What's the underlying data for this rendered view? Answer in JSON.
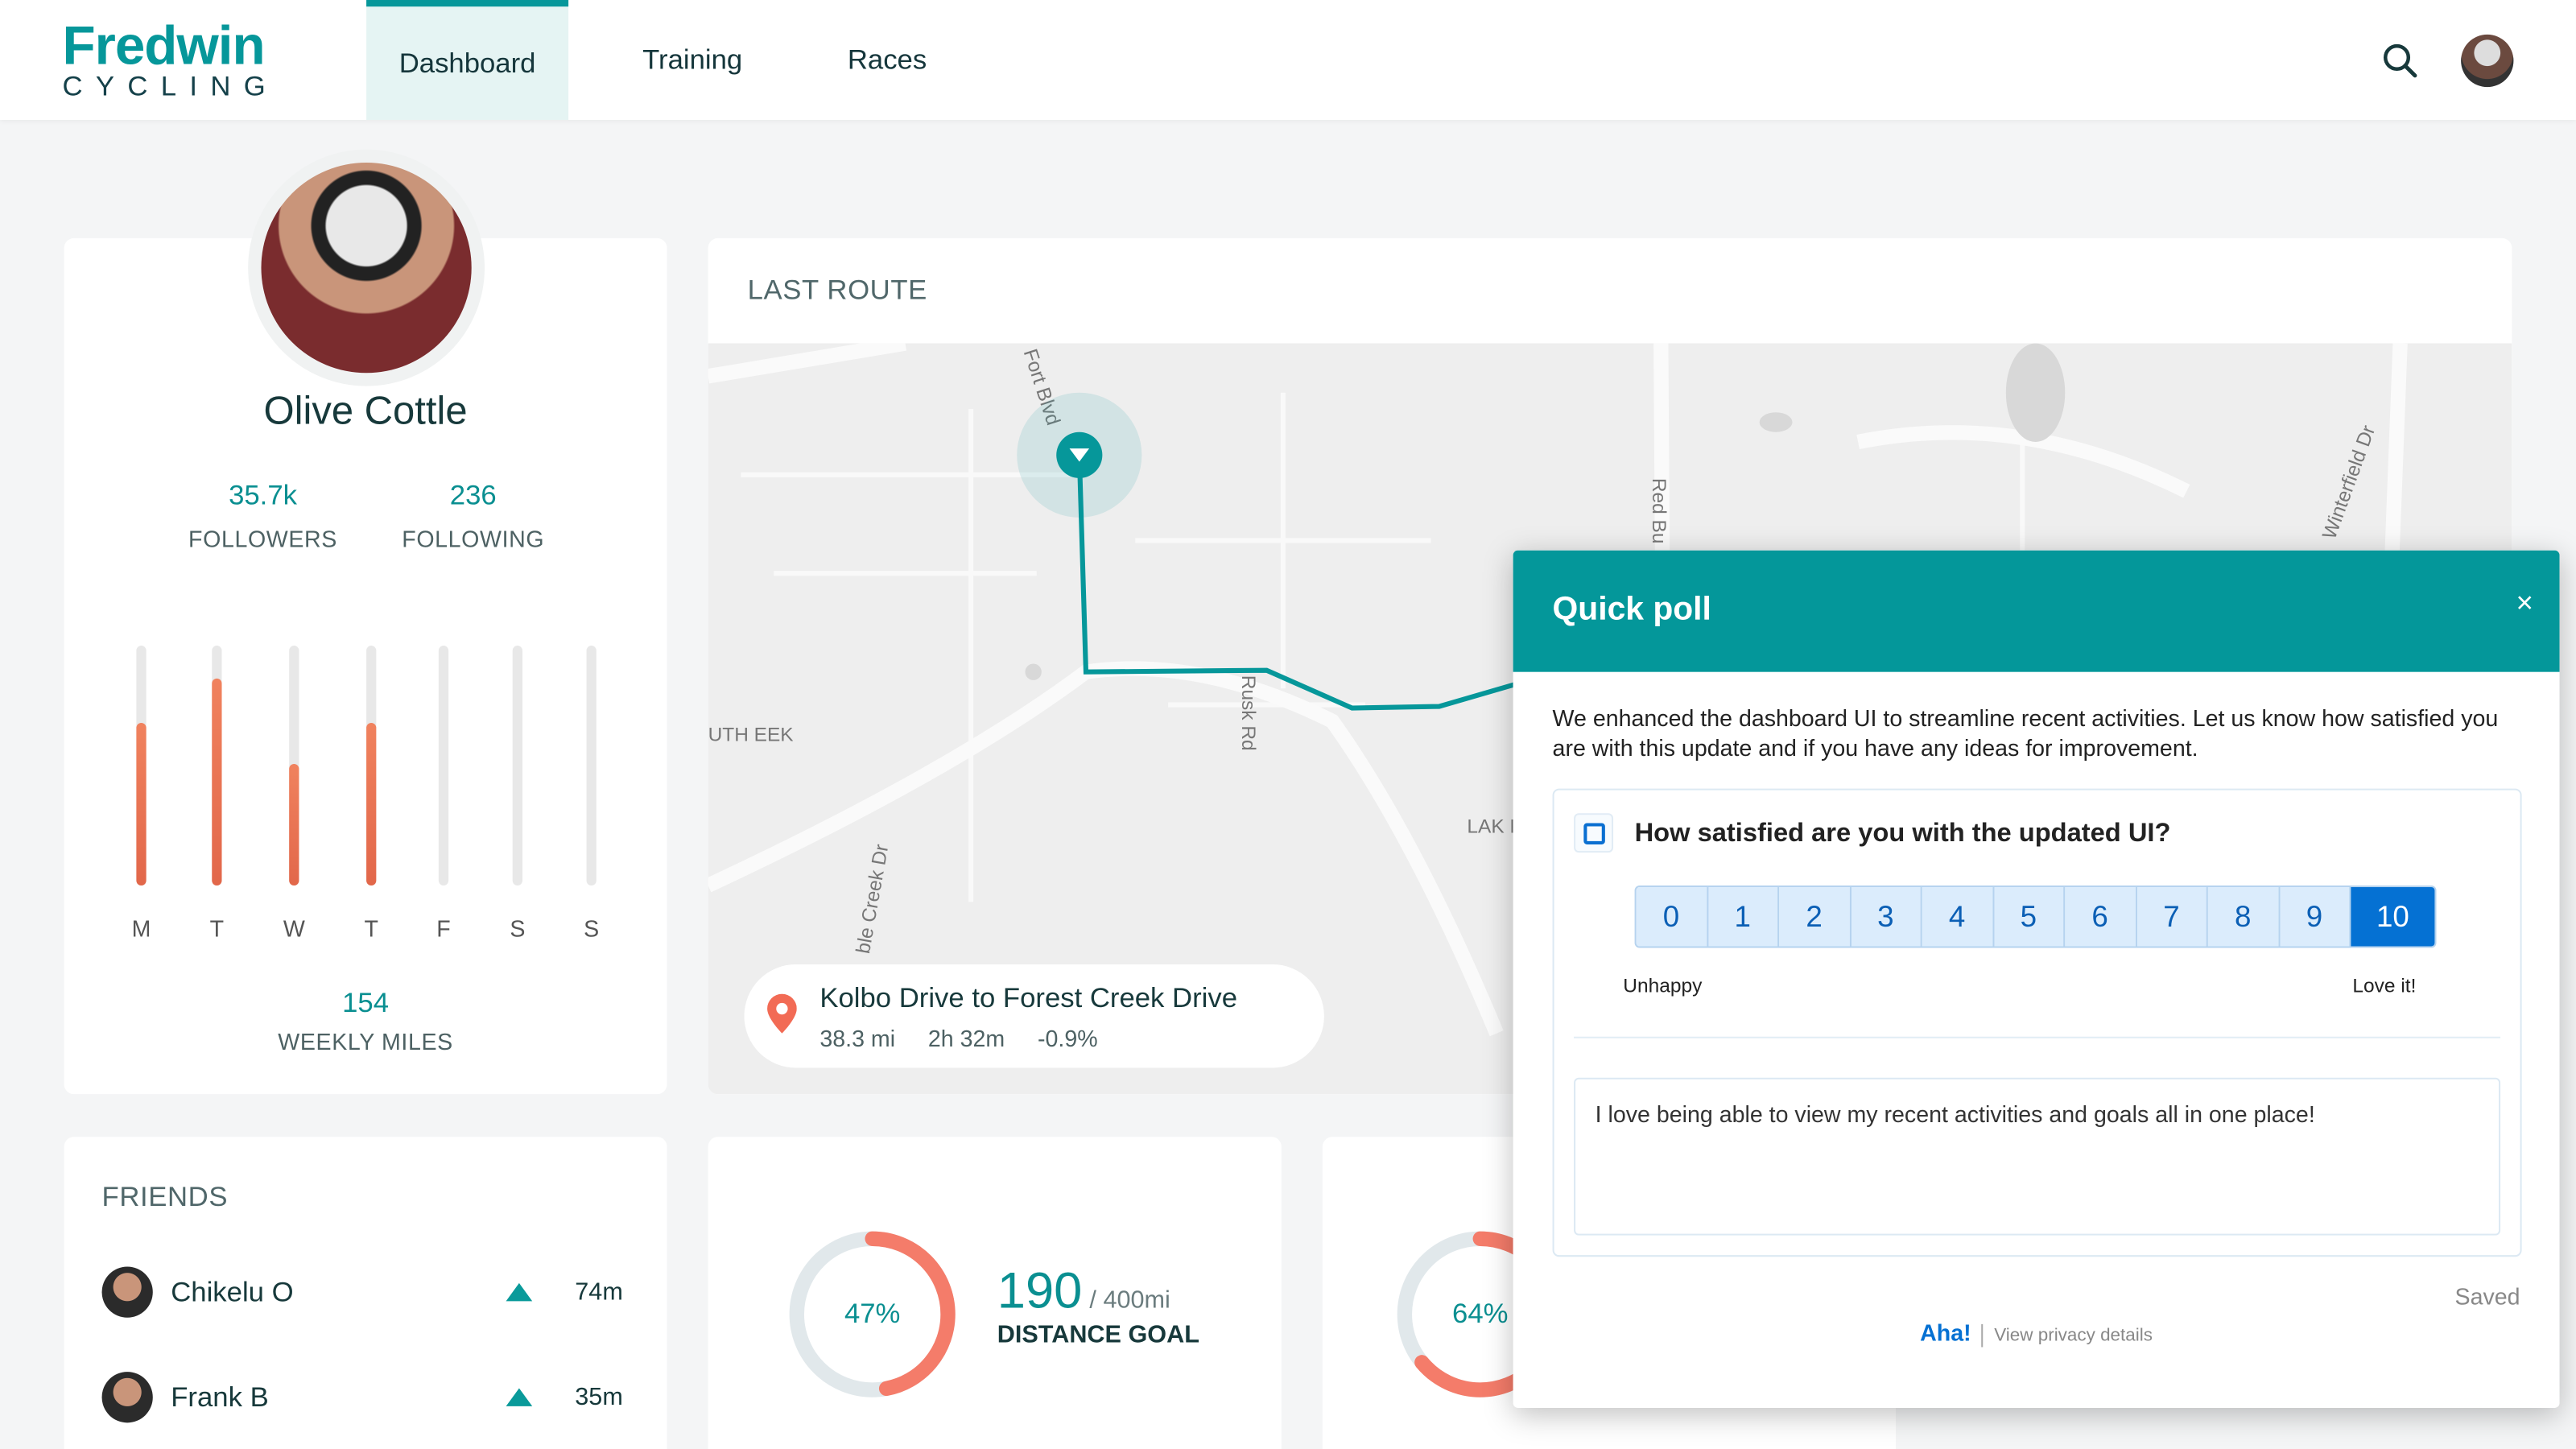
{
  "header": {
    "logo_line1": "Fredwin",
    "logo_line2": "CYCLING",
    "nav": [
      {
        "label": "Dashboard",
        "active": true
      },
      {
        "label": "Training"
      },
      {
        "label": "Races"
      }
    ],
    "icons": [
      "search-icon",
      "user-avatar"
    ]
  },
  "profile": {
    "name": "Olive Cottle",
    "followers": "35.7k",
    "followers_label": "FOLLOWERS",
    "following": "236",
    "following_label": "FOLLOWING",
    "weekly": {
      "days": [
        "M",
        "T",
        "W",
        "T",
        "F",
        "S",
        "S"
      ],
      "fill": [
        0.68,
        0.86,
        0.51,
        0.68,
        0,
        0,
        0
      ]
    },
    "weekly_miles": "154",
    "weekly_miles_label": "WEEKLY MILES"
  },
  "route": {
    "title": "LAST ROUTE",
    "name": "Kolbo Drive to Forest Creek Drive",
    "distance": "38.3 mi",
    "duration": "2h 32m",
    "grade": "-0.9%",
    "map_labels": [
      "Fort Blvd",
      "Red Bu",
      "Winterfield Dr",
      "Rusk Rd",
      "ble Creek Dr",
      "UTH EEK",
      "LAK FORE"
    ]
  },
  "friends": {
    "title": "FRIENDS",
    "items": [
      {
        "name": "Chikelu O",
        "time": "74m"
      },
      {
        "name": "Frank B",
        "time": "35m"
      }
    ]
  },
  "goals": [
    {
      "percent": "47%",
      "value": "190",
      "target": "/ 400mi",
      "label": "DISTANCE GOAL",
      "fraction": 0.47
    },
    {
      "percent": "64%",
      "fraction": 0.64
    }
  ],
  "colors": {
    "accent": "#06979a",
    "bar": "#e8694b",
    "poll_selected": "#0571d3"
  },
  "poll": {
    "title": "Quick poll",
    "close": "×",
    "description": "We enhanced the dashboard UI to streamline recent activities. Let us know how satisfied you are with this update and if you have any ideas for improvement.",
    "question": "How satisfied are you with the updated UI?",
    "options": [
      "0",
      "1",
      "2",
      "3",
      "4",
      "5",
      "6",
      "7",
      "8",
      "9",
      "10"
    ],
    "selected": "10",
    "low_label": "Unhappy",
    "high_label": "Love it!",
    "comment": "I love being able to view my recent activities and goals all in one place!",
    "status": "Saved",
    "brand": "Aha!",
    "privacy": "View privacy details"
  }
}
